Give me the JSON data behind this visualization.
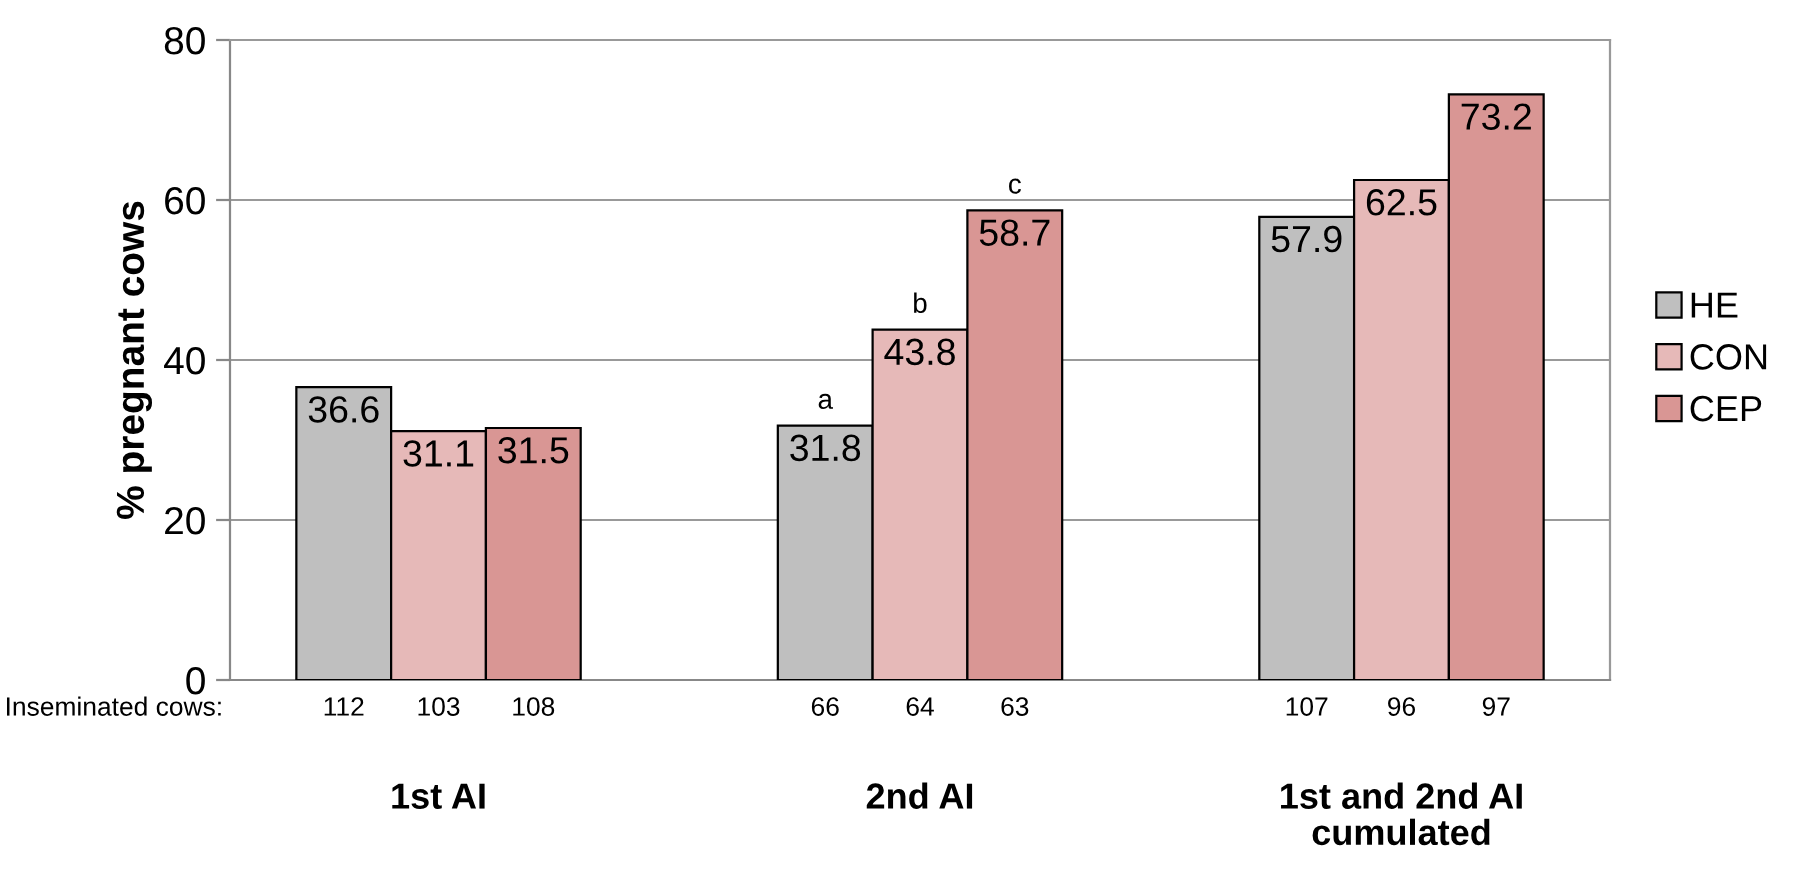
{
  "chart_data": {
    "type": "bar",
    "ylabel": "% pregnant cows",
    "categories": [
      "1st AI",
      "2nd AI",
      "1st and 2nd AI cumulated"
    ],
    "series": [
      {
        "name": "HE",
        "color": "#bfbfbf",
        "values": [
          36.6,
          31.8,
          57.9
        ]
      },
      {
        "name": "CON",
        "color": "#e6b9b8",
        "values": [
          31.1,
          43.8,
          62.5
        ]
      },
      {
        "name": "CEP",
        "color": "#d99694",
        "values": [
          31.5,
          58.7,
          73.2
        ]
      }
    ],
    "ylim": [
      0,
      80
    ],
    "yticks": [
      0,
      20,
      40,
      60,
      80
    ],
    "grid": "y",
    "legend": "right",
    "data_labels": true,
    "annotations": [
      "Inseminated cows:",
      "112",
      "103",
      "108",
      "66",
      "64",
      "63",
      "107",
      "96",
      "97",
      "a",
      "b",
      "c"
    ]
  }
}
